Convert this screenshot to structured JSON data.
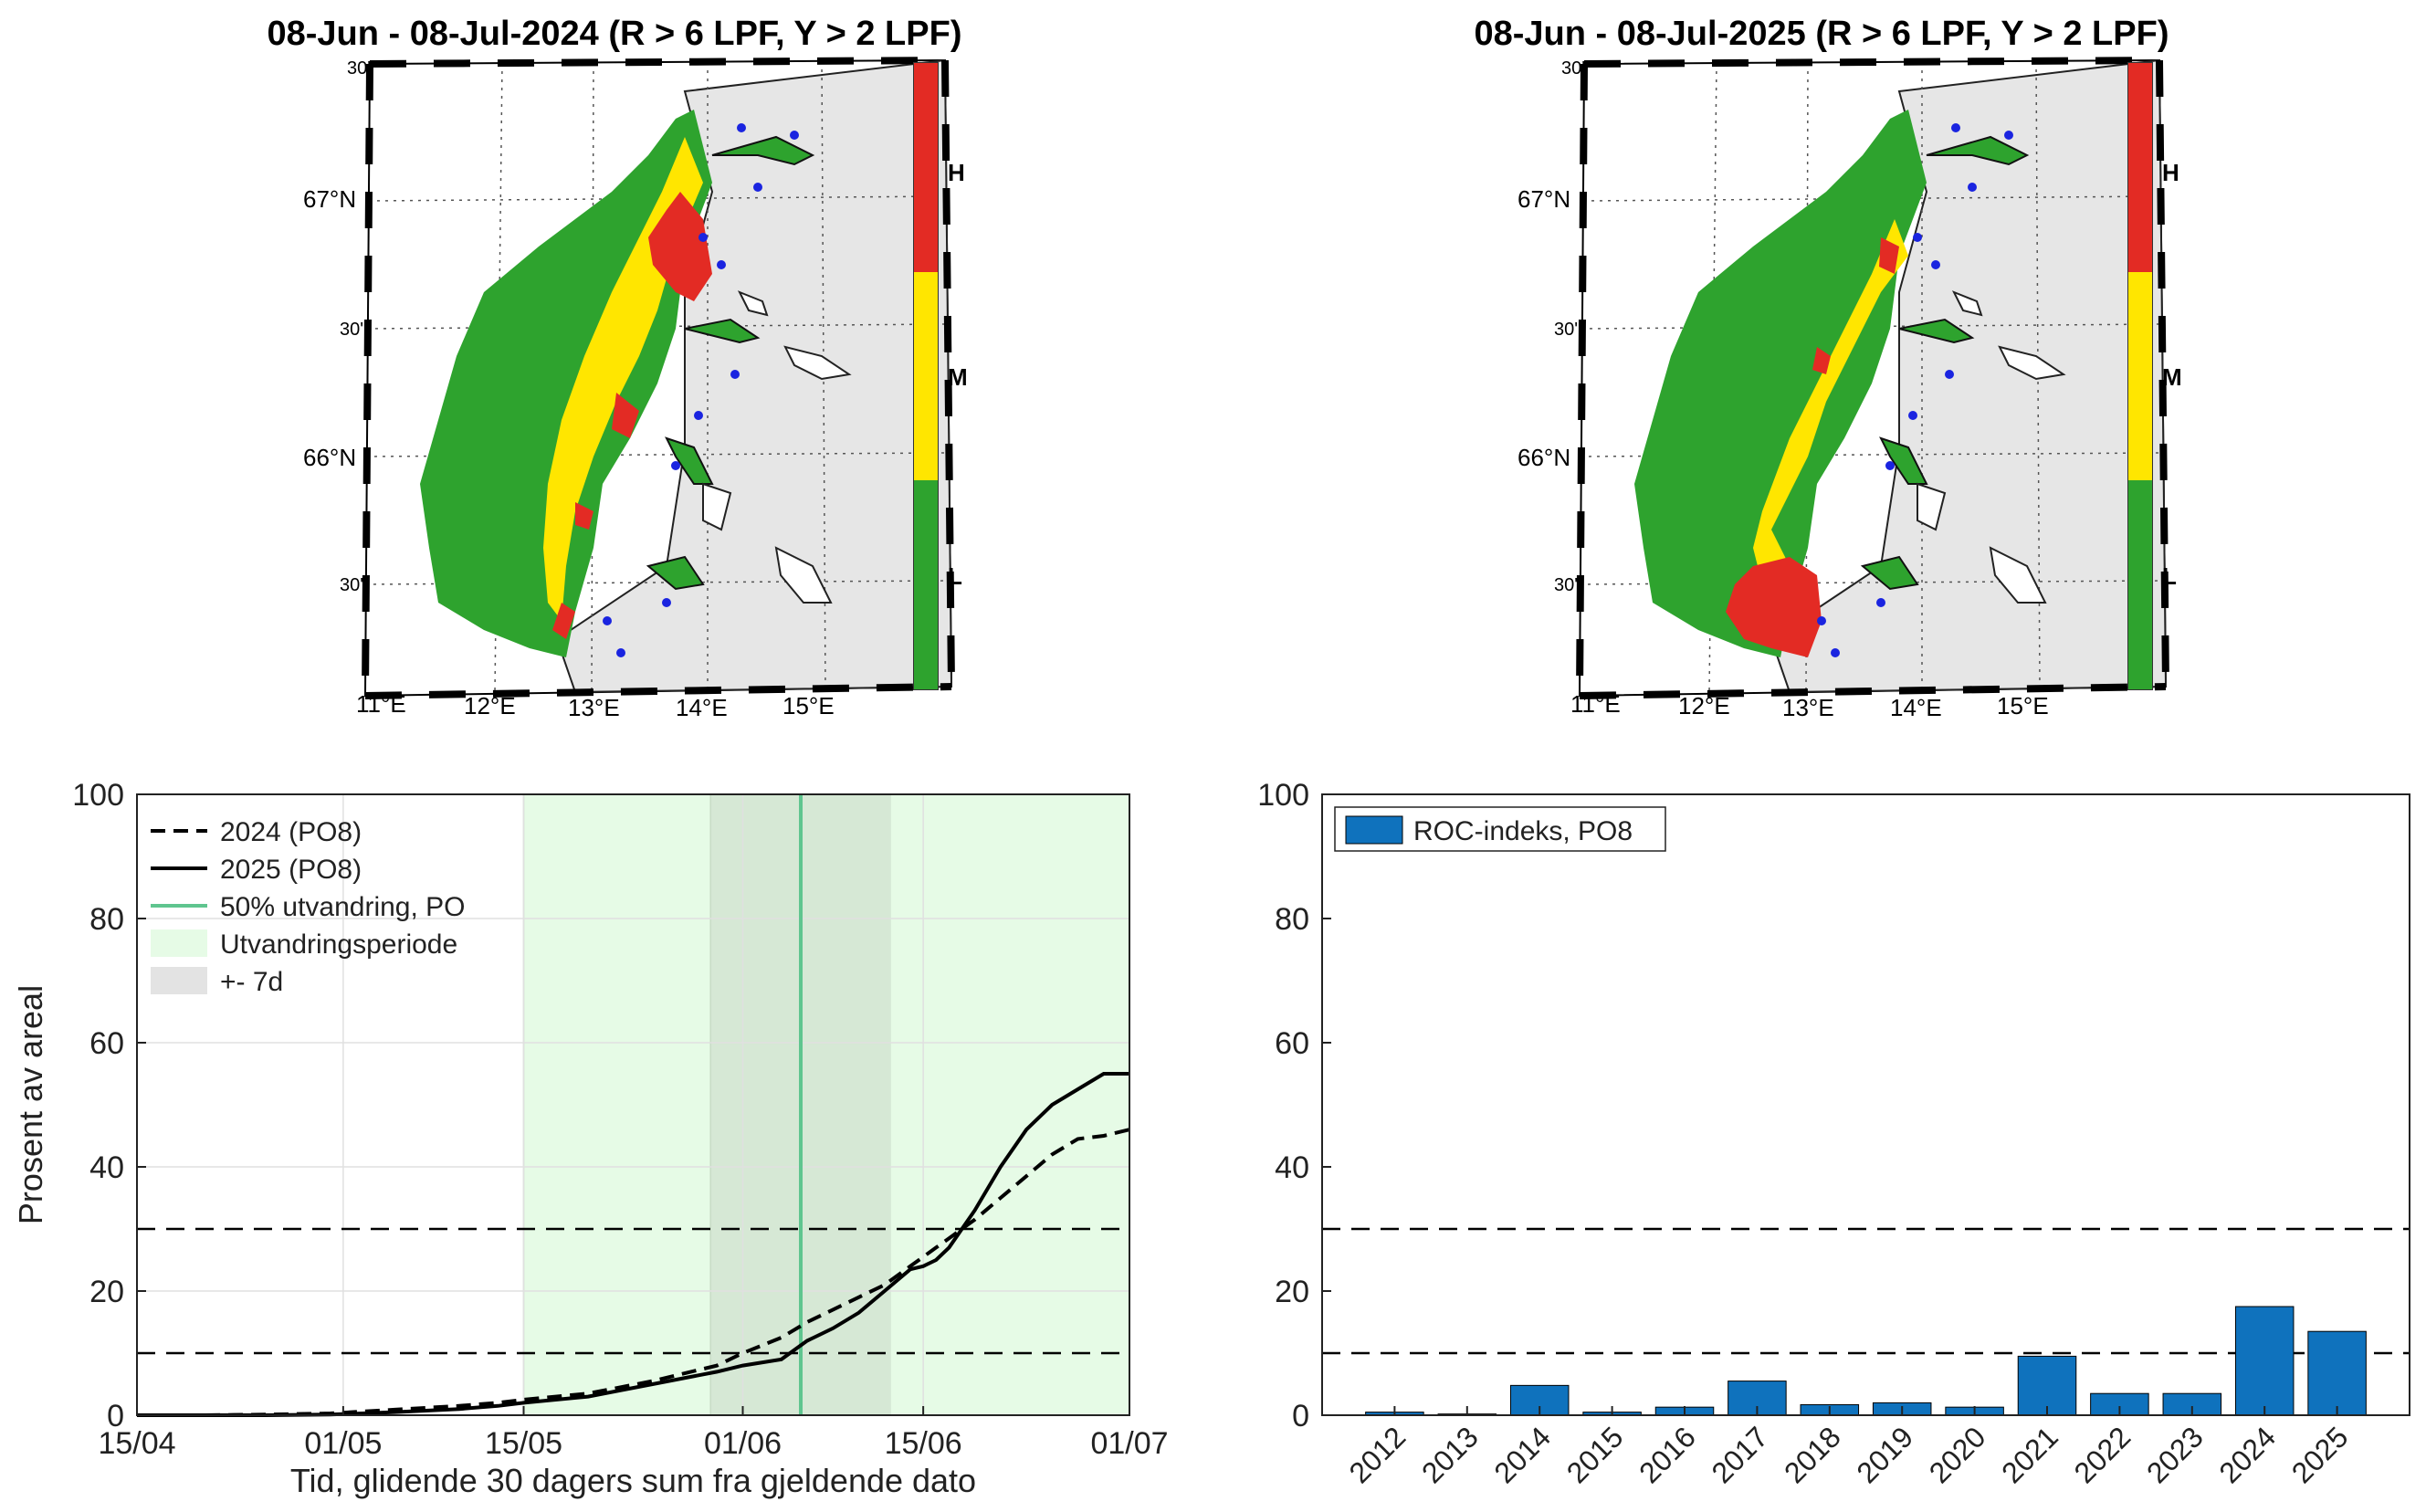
{
  "maps": [
    {
      "title": "08-Jun - 08-Jul-2024  (R > 6 LPF, Y > 2 LPF)",
      "lat_labels": [
        "30'",
        "67°N",
        "30'",
        "66°N",
        "30'"
      ],
      "lon_labels": [
        "11°E",
        "12°E",
        "13°E",
        "14°E",
        "15°E"
      ],
      "colorbar": {
        "labels": [
          "H",
          "M",
          "L"
        ],
        "colors": [
          "#e32b24",
          "#ffe600",
          "#2ea32e"
        ]
      }
    },
    {
      "title": "08-Jun - 08-Jul-2025  (R > 6 LPF, Y > 2 LPF)",
      "lat_labels": [
        "30'",
        "67°N",
        "30'",
        "66°N",
        "30'"
      ],
      "lon_labels": [
        "11°E",
        "12°E",
        "13°E",
        "14°E",
        "15°E"
      ],
      "colorbar": {
        "labels": [
          "H",
          "M",
          "L"
        ],
        "colors": [
          "#e32b24",
          "#ffe600",
          "#2ea32e"
        ]
      }
    }
  ],
  "chart_data": [
    {
      "type": "line",
      "title": "",
      "xlabel": "Tid, glidende 30 dagers sum fra gjeldende dato",
      "ylabel": "Prosent av areal",
      "x_tick_labels": [
        "15/04",
        "01/05",
        "15/05",
        "01/06",
        "15/06",
        "01/07"
      ],
      "x_tick_days": [
        0,
        16,
        30,
        47,
        61,
        77
      ],
      "xlim": [
        0,
        77
      ],
      "ylim": [
        0,
        100
      ],
      "y_ticks": [
        0,
        20,
        40,
        60,
        80,
        100
      ],
      "x_days": [
        0,
        5,
        10,
        15,
        20,
        25,
        28,
        30,
        35,
        40,
        45,
        47,
        50,
        52,
        54,
        56,
        58,
        60,
        61,
        62,
        63,
        65,
        67,
        69,
        71,
        73,
        75,
        77
      ],
      "series": [
        {
          "name": "2024 (PO8)",
          "style": "dashed",
          "values": [
            0,
            0,
            0.1,
            0.3,
            0.9,
            1.5,
            2.0,
            2.5,
            3.5,
            5.5,
            8.0,
            10.0,
            12.5,
            15.0,
            17.0,
            19.0,
            21.0,
            24.0,
            25.5,
            27.0,
            28.5,
            31.5,
            35.0,
            38.5,
            42.0,
            44.5,
            45.0,
            46.0
          ]
        },
        {
          "name": "2025 (PO8)",
          "style": "solid",
          "values": [
            0,
            0,
            0,
            0.1,
            0.5,
            1.0,
            1.5,
            2.0,
            3.0,
            5.0,
            7.0,
            8.0,
            9.0,
            12.0,
            14.0,
            16.5,
            20.0,
            23.5,
            24.0,
            25.0,
            27.0,
            33.0,
            40.0,
            46.0,
            50.0,
            52.5,
            55.0,
            55.0
          ]
        }
      ],
      "vline": {
        "name": "50% utvandring, PO",
        "x_day": 51.5,
        "color": "#5fc58f"
      },
      "shaded_periods": [
        {
          "name": "Utvandringsperiode",
          "from_day": 30,
          "to_day": 77,
          "color": "#e6fbe6"
        },
        {
          "name": "+- 7d",
          "from_day": 44.5,
          "to_day": 58.5,
          "color": "#d6e8d5"
        }
      ],
      "hlines": [
        10,
        30
      ],
      "legend": [
        "2024 (PO8)",
        "2025 (PO8)",
        "50% utvandring, PO",
        "Utvandringsperiode",
        "+- 7d"
      ],
      "legend_position": "top-left"
    },
    {
      "type": "bar",
      "title": "",
      "categories": [
        "2012",
        "2013",
        "2014",
        "2015",
        "2016",
        "2017",
        "2018",
        "2019",
        "2020",
        "2021",
        "2022",
        "2023",
        "2024",
        "2025"
      ],
      "values": [
        0.5,
        0.2,
        4.8,
        0.5,
        1.3,
        5.5,
        1.7,
        2.0,
        1.3,
        9.5,
        3.5,
        3.5,
        17.5,
        13.5
      ],
      "series_name": "ROC-indeks, PO8",
      "bar_color": "#0f72bd",
      "ylim": [
        0,
        100
      ],
      "y_ticks": [
        0,
        20,
        40,
        60,
        80,
        100
      ],
      "hlines": [
        10,
        30
      ],
      "legend_position": "top-left"
    }
  ]
}
